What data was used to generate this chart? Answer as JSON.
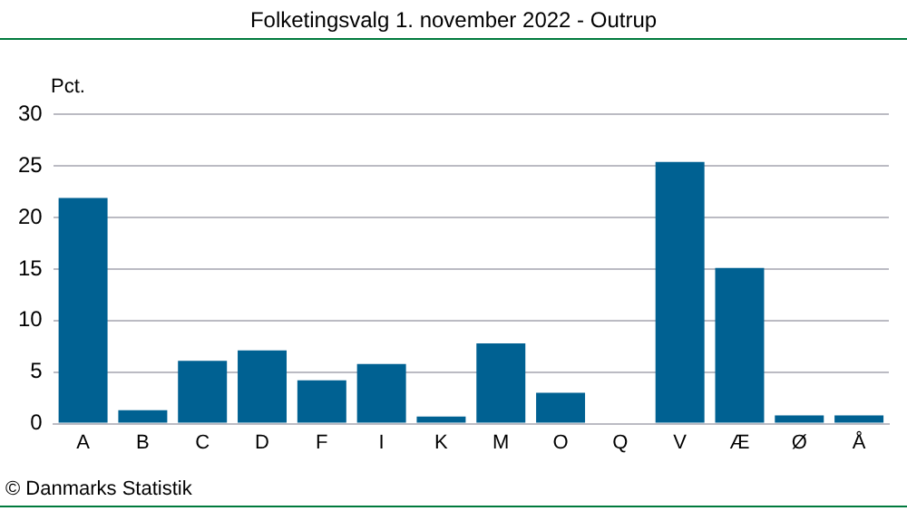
{
  "chart_data": {
    "type": "bar",
    "title": "Folketingsvalg 1. november 2022 - Outrup",
    "ylabel": "Pct.",
    "categories": [
      "A",
      "B",
      "C",
      "D",
      "F",
      "I",
      "K",
      "M",
      "O",
      "Q",
      "V",
      "Æ",
      "Ø",
      "Å"
    ],
    "values": [
      21.9,
      1.3,
      6.1,
      7.1,
      4.2,
      5.8,
      0.7,
      7.8,
      3.0,
      0,
      25.4,
      15.1,
      0.8,
      0.8
    ],
    "color": "#006192",
    "ylim": [
      0,
      30
    ],
    "yticks": [
      0,
      5,
      10,
      15,
      20,
      25,
      30
    ],
    "grid": "y",
    "annotations": [
      "© Danmarks Statistik"
    ]
  }
}
